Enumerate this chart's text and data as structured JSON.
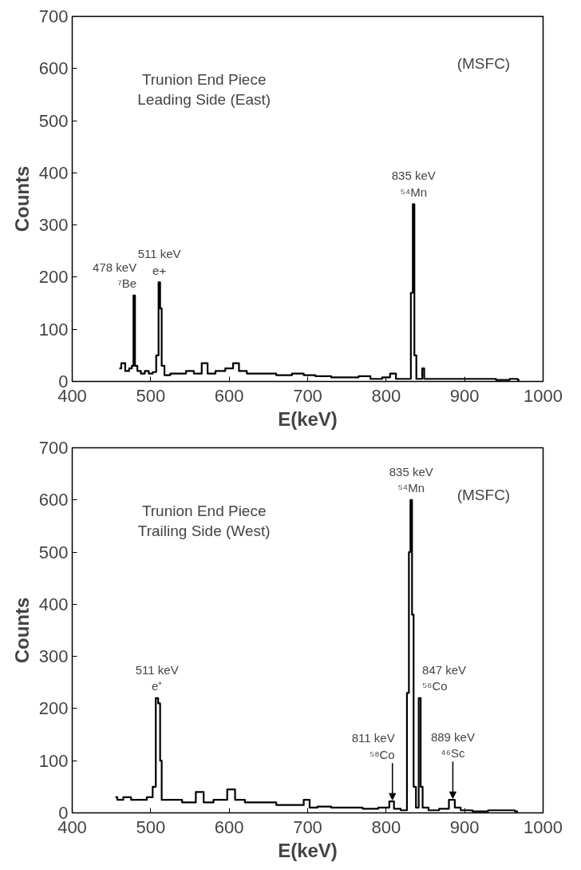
{
  "chart_data": [
    {
      "type": "step",
      "xlabel": "E(keV)",
      "ylabel": "Counts",
      "xlim": [
        400,
        1000
      ],
      "ylim": [
        0,
        700
      ],
      "xticks": [
        400,
        500,
        600,
        700,
        800,
        900,
        1000
      ],
      "yticks": [
        0,
        100,
        200,
        300,
        400,
        500,
        600,
        700
      ],
      "grid": false,
      "x": [
        460,
        465,
        470,
        475,
        477,
        479,
        481,
        485,
        490,
        495,
        500,
        505,
        509,
        511,
        513,
        515,
        520,
        530,
        540,
        550,
        560,
        570,
        575,
        590,
        600,
        610,
        615,
        630,
        650,
        670,
        690,
        700,
        720,
        740,
        760,
        770,
        790,
        800,
        810,
        815,
        830,
        833,
        835,
        837,
        840,
        845,
        847,
        850,
        870,
        890,
        910,
        930,
        950,
        965,
        970
      ],
      "series": [
        {
          "color": "#000000",
          "values": [
            25,
            35,
            20,
            25,
            30,
            165,
            30,
            20,
            15,
            20,
            15,
            18,
            50,
            190,
            140,
            30,
            12,
            15,
            15,
            20,
            15,
            35,
            15,
            20,
            25,
            35,
            20,
            15,
            15,
            12,
            15,
            12,
            10,
            8,
            8,
            10,
            5,
            8,
            15,
            5,
            5,
            170,
            340,
            50,
            5,
            5,
            25,
            5,
            5,
            5,
            5,
            5,
            3,
            5,
            3
          ]
        }
      ],
      "annotations": [
        "Trunion End Piece\nLeading Side (East)",
        "(MSFC)",
        {
          "text": "478 keV\n⁷Be",
          "x": 479,
          "y": 165
        },
        {
          "text": "511 keV\ne+",
          "x": 511,
          "y": 190
        },
        {
          "text": "835 keV\n⁵⁴Mn",
          "x": 835,
          "y": 340
        }
      ]
    },
    {
      "type": "step",
      "xlabel": "E(keV)",
      "ylabel": "Counts",
      "xlim": [
        400,
        1000
      ],
      "ylim": [
        0,
        700
      ],
      "xticks": [
        400,
        500,
        600,
        700,
        800,
        900,
        1000
      ],
      "yticks": [
        0,
        100,
        200,
        300,
        400,
        500,
        600,
        700
      ],
      "grid": false,
      "x": [
        455,
        460,
        470,
        480,
        490,
        500,
        505,
        508,
        511,
        513,
        515,
        530,
        550,
        565,
        570,
        590,
        605,
        610,
        630,
        650,
        670,
        690,
        700,
        705,
        720,
        740,
        760,
        780,
        800,
        808,
        812,
        825,
        828,
        830,
        832,
        834,
        836,
        840,
        843,
        845,
        848,
        860,
        875,
        885,
        890,
        900,
        920,
        940,
        960,
        968
      ],
      "series": [
        {
          "color": "#000000",
          "values": [
            30,
            25,
            30,
            25,
            25,
            30,
            50,
            220,
            210,
            100,
            25,
            25,
            20,
            40,
            20,
            25,
            45,
            25,
            20,
            20,
            15,
            15,
            25,
            10,
            12,
            10,
            10,
            8,
            10,
            22,
            8,
            5,
            230,
            500,
            600,
            380,
            50,
            10,
            220,
            50,
            10,
            5,
            8,
            25,
            10,
            5,
            3,
            5,
            5,
            3
          ]
        }
      ],
      "annotations": [
        "Trunion End Piece\nTrailing Side (West)",
        "(MSFC)",
        {
          "text": "511 keV\ne⁺",
          "x": 508,
          "y": 220
        },
        {
          "text": "835 keV\n⁵⁴Mn",
          "x": 832,
          "y": 600
        },
        {
          "text": "811 keV\n⁵⁸Co",
          "x": 808,
          "y": 22
        },
        {
          "text": "847 keV\n⁵⁶Co",
          "x": 843,
          "y": 220
        },
        {
          "text": "889 keV\n⁴⁶Sc",
          "x": 885,
          "y": 25
        }
      ]
    }
  ]
}
